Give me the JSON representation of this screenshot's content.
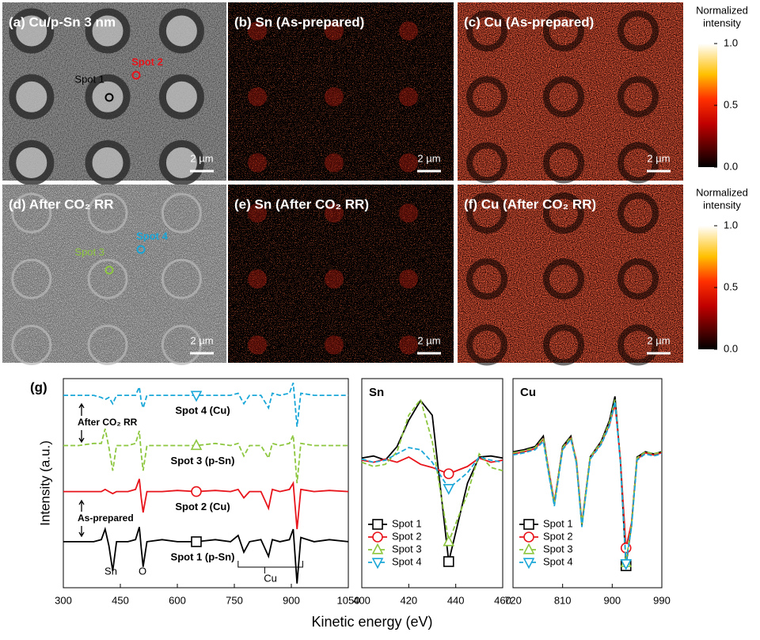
{
  "figure": {
    "x_label": "Kinetic energy (eV)"
  },
  "images": [
    {
      "title": "(a) Cu/p-Sn 3 nm",
      "scale_bar": "2 µm",
      "kind": "tem",
      "spots": [
        {
          "label": "Spot 1",
          "color": "#000000"
        },
        {
          "label": "Spot 2",
          "color": "#e8141b"
        }
      ]
    },
    {
      "title": "(b) Sn (As-prepared)",
      "scale_bar": "2 µm",
      "kind": "sn",
      "spots": []
    },
    {
      "title": "(c) Cu (As-prepared)",
      "scale_bar": "2 µm",
      "kind": "cu",
      "spots": []
    },
    {
      "title": "(d) After CO₂ RR",
      "scale_bar": "2 µm",
      "kind": "sem",
      "spots": [
        {
          "label": "Spot 3",
          "color": "#8dc63f"
        },
        {
          "label": "Spot 4",
          "color": "#1aa7d8"
        }
      ]
    },
    {
      "title": "(e) Sn (After CO₂ RR)",
      "scale_bar": "2 µm",
      "kind": "sn",
      "spots": []
    },
    {
      "title": "(f) Cu (After CO₂ RR)",
      "scale_bar": "2 µm",
      "kind": "cu",
      "spots": []
    }
  ],
  "colorbars": [
    {
      "title": [
        "Normalized",
        "intensity"
      ],
      "lim": [
        0,
        1
      ],
      "ticks": [
        {
          "value": 1,
          "label": "1.0"
        },
        {
          "value": 0.5,
          "label": "0.5"
        },
        {
          "value": 0,
          "label": "0.0"
        }
      ]
    },
    {
      "title": [
        "Normalized",
        "intensity"
      ],
      "lim": [
        0,
        1
      ],
      "ticks": [
        {
          "value": 1,
          "label": "1.0"
        },
        {
          "value": 0.5,
          "label": "0.5"
        },
        {
          "value": 0,
          "label": "0.0"
        }
      ]
    }
  ],
  "chart_data": [
    {
      "type": "line",
      "title": "(g)",
      "y_label": "Intensity (a.u.)",
      "x": [
        300,
        340,
        380,
        400,
        410,
        420,
        430,
        440,
        470,
        490,
        500,
        505,
        510,
        520,
        560,
        600,
        650,
        700,
        740,
        760,
        775,
        790,
        820,
        840,
        850,
        870,
        895,
        905,
        915,
        925,
        960,
        1000,
        1050
      ],
      "xlim": [
        300,
        1050
      ],
      "xticks": [
        300,
        450,
        600,
        750,
        900,
        1050
      ],
      "ylim": [
        0,
        10
      ],
      "annotations": [
        "Sn",
        "O",
        "Cu",
        "As-prepared",
        "After CO₂ RR"
      ],
      "series": [
        {
          "name": "Spot 1 (p-Sn)",
          "color": "#000000",
          "line_style": "solid",
          "marker": "square",
          "values": [
            2.2,
            2.2,
            2.2,
            2.3,
            2.8,
            2.0,
            0.8,
            2.2,
            2.2,
            2.3,
            2.9,
            1.9,
            1.0,
            2.2,
            2.3,
            2.2,
            2.2,
            2.3,
            2.2,
            2.5,
            1.7,
            2.2,
            2.3,
            1.5,
            2.3,
            2.2,
            2.3,
            2.8,
            0.2,
            2.4,
            2.2,
            2.3,
            2.2
          ]
        },
        {
          "name": "Spot 2 (Cu)",
          "color": "#e8141b",
          "line_style": "solid",
          "marker": "circle",
          "values": [
            4.6,
            4.6,
            4.6,
            4.6,
            4.7,
            4.6,
            4.5,
            4.6,
            4.6,
            4.7,
            5.2,
            4.3,
            3.6,
            4.6,
            4.6,
            4.65,
            4.6,
            4.65,
            4.6,
            4.7,
            4.3,
            4.6,
            4.6,
            3.8,
            4.7,
            4.6,
            4.7,
            5.0,
            2.8,
            4.7,
            4.6,
            4.65,
            4.6
          ]
        },
        {
          "name": "Spot 3 (p-Sn)",
          "color": "#8dc63f",
          "line_style": "dashed",
          "marker": "triangle-up",
          "values": [
            6.8,
            6.8,
            6.9,
            6.9,
            7.6,
            6.7,
            5.6,
            6.8,
            6.8,
            6.9,
            7.5,
            6.4,
            5.6,
            6.8,
            6.8,
            6.8,
            6.8,
            6.9,
            6.8,
            6.9,
            6.3,
            6.8,
            6.8,
            6.2,
            6.9,
            6.8,
            6.9,
            7.3,
            5.0,
            6.9,
            6.8,
            6.8,
            6.8
          ]
        },
        {
          "name": "Spot 4 (Cu)",
          "color": "#1aa7d8",
          "line_style": "dashed",
          "marker": "triangle-down",
          "values": [
            9.2,
            9.2,
            9.2,
            9.1,
            9.0,
            9.1,
            8.8,
            9.2,
            9.2,
            9.2,
            9.6,
            8.9,
            8.6,
            9.2,
            9.2,
            9.2,
            9.2,
            9.2,
            9.2,
            9.3,
            8.8,
            9.2,
            9.2,
            8.6,
            9.3,
            9.2,
            9.3,
            9.8,
            7.7,
            9.3,
            9.2,
            9.2,
            9.2
          ]
        }
      ]
    },
    {
      "type": "line",
      "title": "Sn",
      "x": [
        400,
        405,
        410,
        415,
        420,
        425,
        430,
        437,
        445,
        450,
        455,
        460
      ],
      "xlim": [
        400,
        460
      ],
      "xticks": [
        400,
        420,
        440,
        460
      ],
      "ylim": [
        -10,
        10
      ],
      "legend": "lower left",
      "series": [
        {
          "name": "Spot 1",
          "color": "#000000",
          "line_style": "solid",
          "marker": "square",
          "values": [
            2.4,
            2.6,
            2.2,
            3.5,
            6,
            7.9,
            6.5,
            -7.5,
            0,
            2.5,
            2.6,
            2.4
          ]
        },
        {
          "name": "Spot 2",
          "color": "#e8141b",
          "line_style": "solid",
          "marker": "circle",
          "values": [
            2.2,
            2.0,
            2.3,
            2.0,
            2.5,
            1.8,
            1.5,
            0.9,
            1.6,
            2.4,
            2.0,
            2.2
          ]
        },
        {
          "name": "Spot 3",
          "color": "#8dc63f",
          "line_style": "dashed",
          "marker": "triangle-up",
          "values": [
            2.0,
            1.6,
            1.8,
            3,
            6.5,
            8,
            4,
            -5.6,
            -1,
            2.8,
            1.5,
            1.2
          ]
        },
        {
          "name": "Spot 4",
          "color": "#1aa7d8",
          "line_style": "dashed",
          "marker": "triangle-down",
          "values": [
            2.3,
            2.0,
            2.2,
            2.8,
            3.4,
            3.2,
            2.0,
            -0.5,
            1.0,
            2.5,
            2.2,
            2.0
          ]
        }
      ]
    },
    {
      "type": "line",
      "title": "Cu",
      "x": [
        720,
        740,
        760,
        775,
        785,
        795,
        810,
        825,
        835,
        845,
        860,
        880,
        895,
        905,
        915,
        925,
        935,
        945,
        960,
        975,
        990
      ],
      "xlim": [
        720,
        990
      ],
      "xticks": [
        720,
        810,
        900,
        990
      ],
      "ylim": [
        -10,
        10
      ],
      "legend": "lower left",
      "series": [
        {
          "name": "Spot 1",
          "color": "#000000",
          "line_style": "solid",
          "marker": "square",
          "values": [
            3,
            3.2,
            3.5,
            4.5,
            1,
            -2,
            3.5,
            4.5,
            2,
            -4,
            2.5,
            4,
            6,
            8.3,
            2,
            -7.9,
            -4,
            2.5,
            3,
            2.8,
            3
          ]
        },
        {
          "name": "Spot 2",
          "color": "#e8141b",
          "line_style": "solid",
          "marker": "circle",
          "values": [
            2.8,
            3.0,
            3.3,
            4.2,
            1.2,
            -1.8,
            3.3,
            4.3,
            2.2,
            -3.8,
            2.4,
            3.8,
            5.6,
            7.6,
            2.2,
            -6.2,
            -3.8,
            2.3,
            2.9,
            2.7,
            2.9
          ]
        },
        {
          "name": "Spot 3",
          "color": "#8dc63f",
          "line_style": "dashed",
          "marker": "triangle-up",
          "values": [
            2.9,
            3.1,
            3.4,
            4.3,
            1.1,
            -1.9,
            3.4,
            4.4,
            2.1,
            -3.9,
            2.5,
            3.9,
            5.8,
            8.0,
            2.1,
            -7.6,
            -3.9,
            2.4,
            3.0,
            2.8,
            3.0
          ]
        },
        {
          "name": "Spot 4",
          "color": "#1aa7d8",
          "line_style": "dashed",
          "marker": "triangle-down",
          "values": [
            2.7,
            2.9,
            3.2,
            4.0,
            0.8,
            -2.2,
            3.2,
            4.2,
            1.9,
            -4.2,
            2.3,
            3.7,
            5.5,
            7.8,
            1.9,
            -7.7,
            -4.2,
            2.2,
            2.8,
            2.6,
            2.8
          ]
        }
      ]
    }
  ]
}
